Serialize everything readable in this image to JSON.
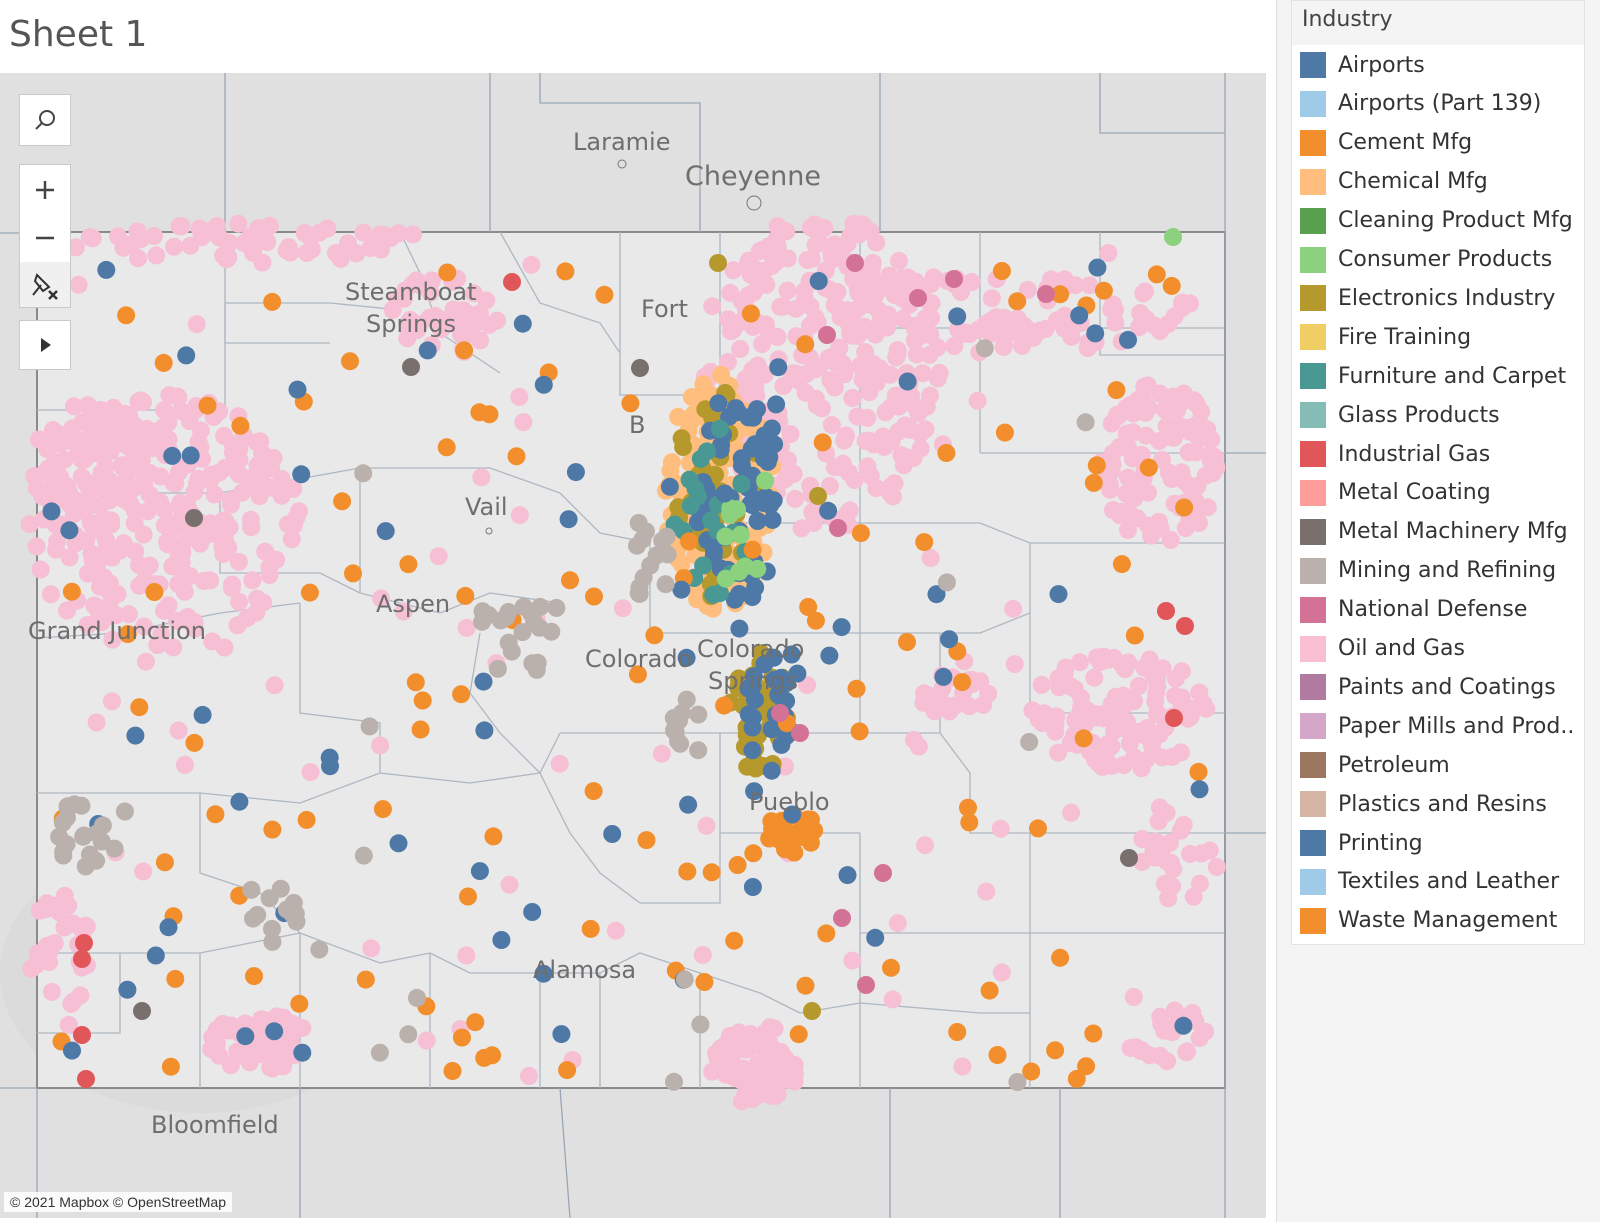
{
  "sheet": {
    "title": "Sheet 1"
  },
  "map": {
    "attribution": "© 2021 Mapbox © OpenStreetMap",
    "cities": [
      {
        "name": "Laramie"
      },
      {
        "name": "Cheyenne"
      },
      {
        "name": "Steamboat"
      },
      {
        "name": "Springs"
      },
      {
        "name": "Fort"
      },
      {
        "name": "Vail"
      },
      {
        "name": "Aspen"
      },
      {
        "name": "Colorado"
      },
      {
        "name": "Colorado"
      },
      {
        "name": "Springs"
      },
      {
        "name": "Pueblo"
      },
      {
        "name": "Grand Junction"
      },
      {
        "name": "Alamosa"
      },
      {
        "name": "Bloomfield"
      },
      {
        "name": "B"
      }
    ],
    "controls": {
      "search_icon": "search-icon",
      "zoom_in_icon": "plus-icon",
      "zoom_out_icon": "minus-icon",
      "pin_icon": "pin-clear-icon",
      "expand_icon": "play-icon"
    }
  },
  "legend": {
    "title": "Industry",
    "items": [
      {
        "label": "Airports",
        "color": "#4e79a7"
      },
      {
        "label": "Airports (Part 139)",
        "color": "#a0cbe8"
      },
      {
        "label": "Cement Mfg",
        "color": "#f28e2b"
      },
      {
        "label": "Chemical Mfg",
        "color": "#ffbe7d"
      },
      {
        "label": "Cleaning Product Mfg",
        "color": "#59a14f"
      },
      {
        "label": "Consumer Products",
        "color": "#8cd17d"
      },
      {
        "label": "Electronics Industry",
        "color": "#b6992d"
      },
      {
        "label": "Fire Training",
        "color": "#f1ce63"
      },
      {
        "label": "Furniture and Carpet",
        "color": "#499894"
      },
      {
        "label": "Glass Products",
        "color": "#86bcb6"
      },
      {
        "label": "Industrial Gas",
        "color": "#e15759"
      },
      {
        "label": "Metal Coating",
        "color": "#ff9d9a"
      },
      {
        "label": "Metal Machinery Mfg",
        "color": "#79706e"
      },
      {
        "label": "Mining and Refining",
        "color": "#bab0ac"
      },
      {
        "label": "National Defense",
        "color": "#d37295"
      },
      {
        "label": "Oil and Gas",
        "color": "#fabfd2"
      },
      {
        "label": "Paints and Coatings",
        "color": "#b07aa1"
      },
      {
        "label": "Paper Mills and Prod..",
        "color": "#d4a6c8"
      },
      {
        "label": "Petroleum",
        "color": "#9d7660"
      },
      {
        "label": "Plastics and Resins",
        "color": "#d7b5a6"
      },
      {
        "label": "Printing",
        "color": "#4e79a7"
      },
      {
        "label": "Textiles and Leather",
        "color": "#a0cbe8"
      },
      {
        "label": "Waste Management",
        "color": "#f28e2b"
      }
    ]
  }
}
